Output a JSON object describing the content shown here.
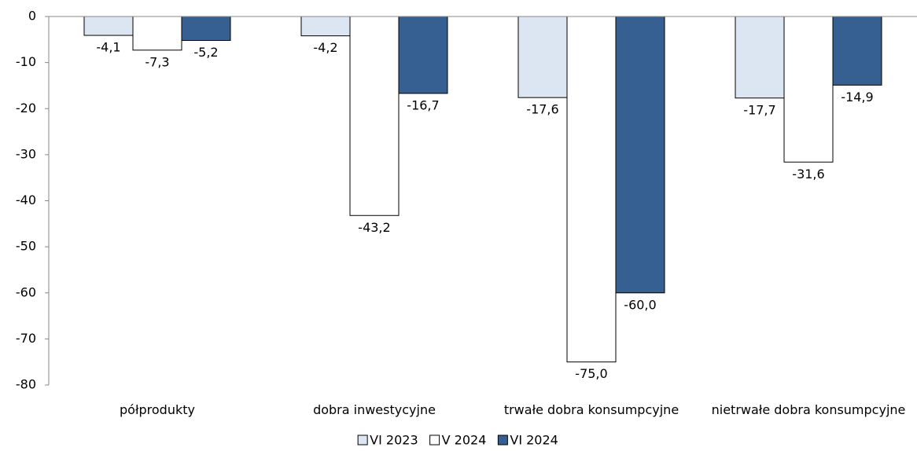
{
  "chart_data": {
    "type": "bar",
    "categories": [
      "półprodukty",
      "dobra inwestycyjne",
      "trwałe dobra konsumpcyjne",
      "nietrwałe dobra konsumpcyjne"
    ],
    "series": [
      {
        "name": "VI 2023",
        "color": "#dce6f2",
        "values": [
          -4.1,
          -4.2,
          -17.6,
          -17.7
        ],
        "value_labels": [
          "-4,1",
          "-4,2",
          "-17,6",
          "-17,7"
        ]
      },
      {
        "name": "V 2024",
        "color": "#ffffff",
        "values": [
          -7.3,
          -43.2,
          -75.0,
          -31.6
        ],
        "value_labels": [
          "-7,3",
          "-43,2",
          "-75,0",
          "-31,6"
        ]
      },
      {
        "name": "VI 2024",
        "color": "#376092",
        "values": [
          -5.2,
          -16.7,
          -60.0,
          -14.9
        ],
        "value_labels": [
          "-5,2",
          "-16,7",
          "-60,0",
          "-14,9"
        ]
      }
    ],
    "ylim": [
      -80,
      0
    ],
    "yticks": [
      0,
      -10,
      -20,
      -30,
      -40,
      -50,
      -60,
      -70,
      -80
    ]
  }
}
